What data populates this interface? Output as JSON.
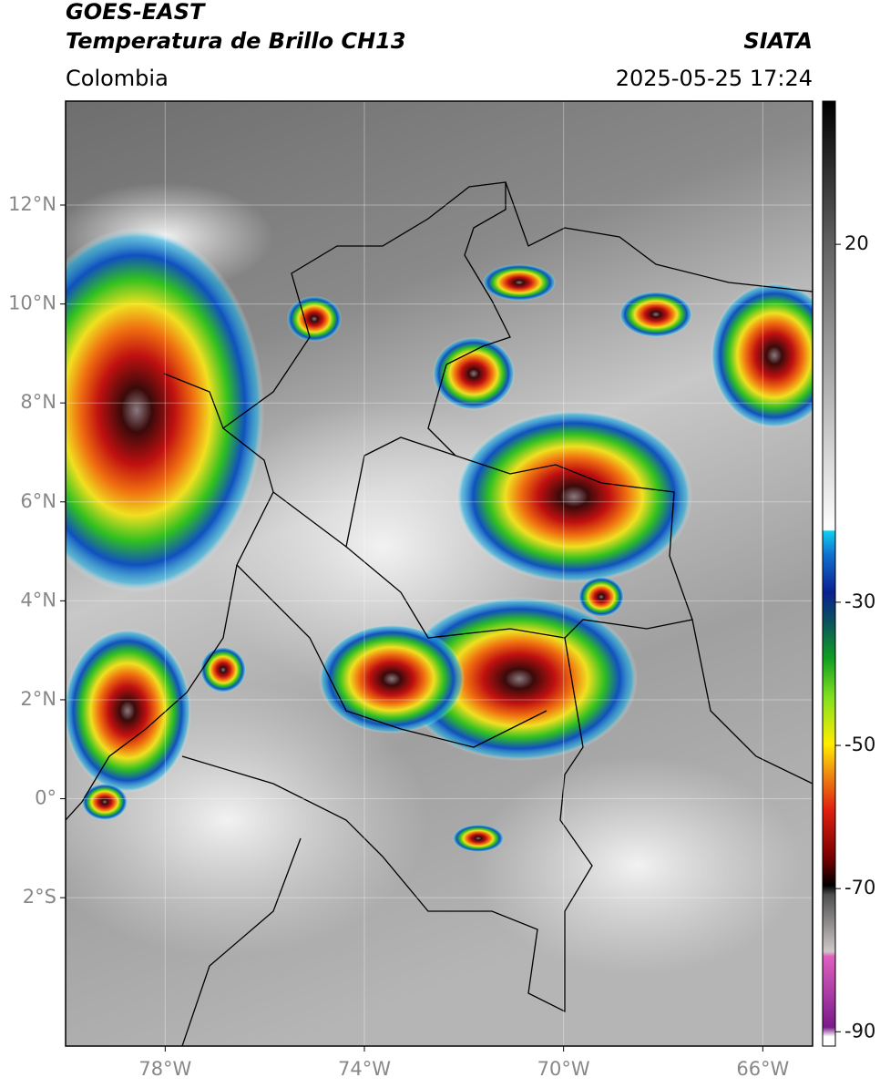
{
  "header": {
    "title": "GOES-EAST",
    "subtitle": "Temperatura de Brillo CH13",
    "region": "Colombia",
    "source": "SIATA",
    "datetime": "2025-05-25 17:24"
  },
  "map": {
    "xlim": [
      -80,
      -65
    ],
    "ylim": [
      -5,
      14.1
    ],
    "xticks": [
      {
        "value": -78,
        "label": "78°W"
      },
      {
        "value": -74,
        "label": "74°W"
      },
      {
        "value": -70,
        "label": "70°W"
      },
      {
        "value": -66,
        "label": "66°W"
      }
    ],
    "yticks": [
      {
        "value": 12,
        "label": "12°N"
      },
      {
        "value": 10,
        "label": "10°N"
      },
      {
        "value": 8,
        "label": "8°N"
      },
      {
        "value": 6,
        "label": "6°N"
      },
      {
        "value": 4,
        "label": "4°N"
      },
      {
        "value": 2,
        "label": "2°N"
      },
      {
        "value": 0,
        "label": "0°"
      },
      {
        "value": -2,
        "label": "2°S"
      }
    ],
    "grid": true
  },
  "colorbar": {
    "lim": [
      -92,
      40
    ],
    "ticks": [
      20,
      -30,
      -50,
      -70,
      -90
    ]
  }
}
